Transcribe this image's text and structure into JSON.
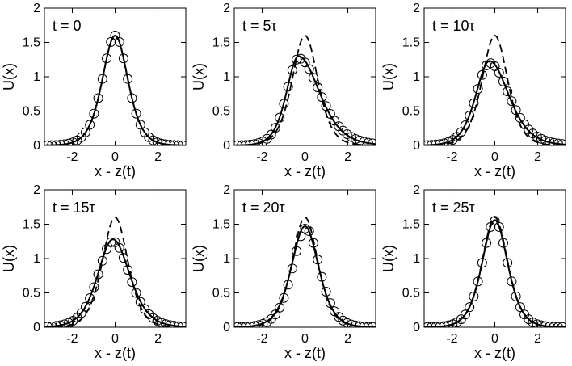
{
  "chart_data": [
    {
      "type": "line",
      "title": "t = 0",
      "xlabel": "x - z(t)",
      "ylabel": "U(x)",
      "xlim": [
        -3.3,
        3.3
      ],
      "ylim": [
        0,
        2
      ],
      "xticks": [
        -2,
        0,
        2
      ],
      "yticks": [
        0,
        0.5,
        1,
        1.5,
        2
      ],
      "xtick_labels": [
        "-2",
        "0",
        "2"
      ],
      "ytick_labels": [
        "0",
        "0.5",
        "1",
        "1.5",
        "2"
      ],
      "series": [
        {
          "style": "dashed",
          "peak_x": 0.0,
          "peak": 1.6,
          "left_width": 0.8,
          "right_width": 0.8
        },
        {
          "style": "solid",
          "peak_x": 0.0,
          "peak": 1.6,
          "left_width": 0.8,
          "right_width": 0.8
        },
        {
          "style": "markers",
          "peak_x": 0.0,
          "peak": 1.6,
          "left_width": 0.8,
          "right_width": 0.8
        }
      ]
    },
    {
      "type": "line",
      "title": "t = 5τ",
      "xlabel": "x - z(t)",
      "ylabel": "U(x)",
      "xlim": [
        -3.3,
        3.3
      ],
      "ylim": [
        0,
        2
      ],
      "xticks": [
        -2,
        0,
        2
      ],
      "yticks": [
        0,
        0.5,
        1,
        1.5,
        2
      ],
      "xtick_labels": [
        "-2",
        "0",
        "2"
      ],
      "ytick_labels": [
        "0",
        "0.5",
        "1",
        "1.5",
        "2"
      ],
      "series": [
        {
          "style": "dashed",
          "peak_x": 0.0,
          "peak": 1.6,
          "left_width": 0.8,
          "right_width": 0.8
        },
        {
          "style": "solid",
          "peak_x": -0.3,
          "peak": 1.3,
          "left_width": 0.75,
          "right_width": 1.3
        },
        {
          "style": "markers",
          "peak_x": -0.3,
          "peak": 1.27,
          "left_width": 0.75,
          "right_width": 1.35
        }
      ]
    },
    {
      "type": "line",
      "title": "t = 10τ",
      "xlabel": "x - z(t)",
      "ylabel": "U(x)",
      "xlim": [
        -3.3,
        3.3
      ],
      "ylim": [
        0,
        2
      ],
      "xticks": [
        -2,
        0,
        2
      ],
      "yticks": [
        0,
        0.5,
        1,
        1.5,
        2
      ],
      "xtick_labels": [
        "-2",
        "0",
        "2"
      ],
      "ytick_labels": [
        "0",
        "0.5",
        "1",
        "1.5",
        "2"
      ],
      "series": [
        {
          "style": "dashed",
          "peak_x": 0.0,
          "peak": 1.6,
          "left_width": 0.8,
          "right_width": 0.8
        },
        {
          "style": "solid",
          "peak_x": -0.25,
          "peak": 1.23,
          "left_width": 0.85,
          "right_width": 1.2
        },
        {
          "style": "markers",
          "peak_x": -0.25,
          "peak": 1.2,
          "left_width": 0.85,
          "right_width": 1.25
        }
      ]
    },
    {
      "type": "line",
      "title": "t = 15τ",
      "xlabel": "x - z(t)",
      "ylabel": "U(x)",
      "xlim": [
        -3.3,
        3.3
      ],
      "ylim": [
        0,
        2
      ],
      "xticks": [
        -2,
        0,
        2
      ],
      "yticks": [
        0,
        0.5,
        1,
        1.5,
        2
      ],
      "xtick_labels": [
        "-2",
        "0",
        "2"
      ],
      "ytick_labels": [
        "0",
        "0.5",
        "1",
        "1.5",
        "2"
      ],
      "series": [
        {
          "style": "dashed",
          "peak_x": 0.0,
          "peak": 1.6,
          "left_width": 0.8,
          "right_width": 0.8
        },
        {
          "style": "solid",
          "peak_x": -0.1,
          "peak": 1.28,
          "left_width": 0.95,
          "right_width": 1.05
        },
        {
          "style": "markers",
          "peak_x": -0.1,
          "peak": 1.25,
          "left_width": 0.95,
          "right_width": 1.05
        }
      ]
    },
    {
      "type": "line",
      "title": "t = 20τ",
      "xlabel": "x - z(t)",
      "ylabel": "U(x)",
      "xlim": [
        -3.3,
        3.3
      ],
      "ylim": [
        0,
        2
      ],
      "xticks": [
        -2,
        0,
        2
      ],
      "yticks": [
        0,
        0.5,
        1,
        1.5,
        2
      ],
      "xtick_labels": [
        "-2",
        "0",
        "2"
      ],
      "ytick_labels": [
        "0",
        "0.5",
        "1",
        "1.5",
        "2"
      ],
      "series": [
        {
          "style": "dashed",
          "peak_x": 0.0,
          "peak": 1.6,
          "left_width": 0.8,
          "right_width": 0.8
        },
        {
          "style": "solid",
          "peak_x": 0.0,
          "peak": 1.47,
          "left_width": 0.85,
          "right_width": 0.85
        },
        {
          "style": "markers",
          "peak_x": 0.05,
          "peak": 1.44,
          "left_width": 0.85,
          "right_width": 0.85
        }
      ]
    },
    {
      "type": "line",
      "title": "t = 25τ",
      "xlabel": "x - z(t)",
      "ylabel": "U(x)",
      "xlim": [
        -3.3,
        3.3
      ],
      "ylim": [
        0,
        2
      ],
      "xticks": [
        -2,
        0,
        2
      ],
      "yticks": [
        0,
        0.5,
        1,
        1.5,
        2
      ],
      "xtick_labels": [
        "-2",
        "0",
        "2"
      ],
      "ytick_labels": [
        "0",
        "0.5",
        "1",
        "1.5",
        "2"
      ],
      "series": [
        {
          "style": "dashed",
          "peak_x": 0.0,
          "peak": 1.6,
          "left_width": 0.8,
          "right_width": 0.8
        },
        {
          "style": "solid",
          "peak_x": 0.0,
          "peak": 1.56,
          "left_width": 0.8,
          "right_width": 0.8
        },
        {
          "style": "markers",
          "peak_x": 0.0,
          "peak": 1.55,
          "left_width": 0.8,
          "right_width": 0.8
        }
      ]
    }
  ]
}
